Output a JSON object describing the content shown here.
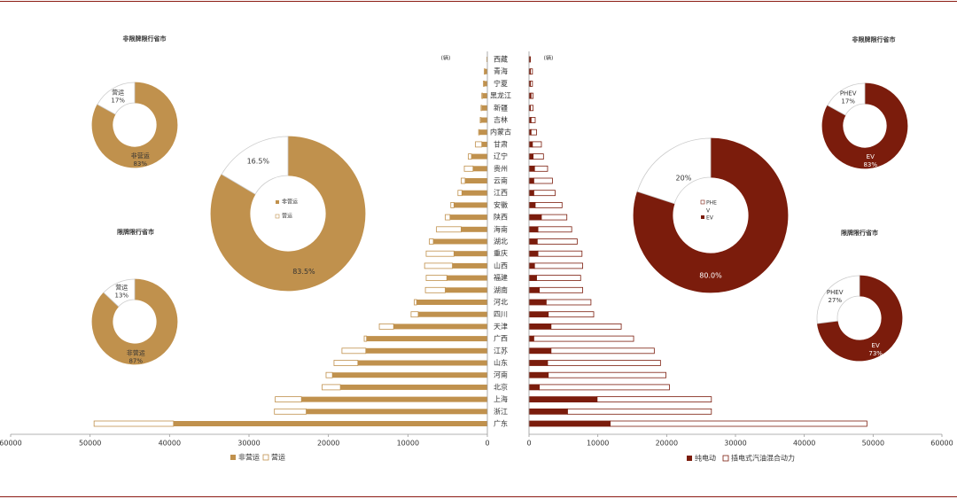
{
  "colors": {
    "commercial": "#c0914d",
    "ev": "#7b1c0c",
    "outline_left": "#c0914d",
    "outline_right": "#7b1c0c",
    "rule": "#8b1a12",
    "axis": "#9a9a9a",
    "text": "#333333"
  },
  "titles": {
    "left_top_donut": "非限牌限行省市",
    "left_bottom_donut": "限牌限行省市",
    "right_top_donut": "非限牌限行省市",
    "right_bottom_donut": "限牌限行省市"
  },
  "chart_data": [
    {
      "type": "bar",
      "orientation": "horizontal",
      "direction": "leftward",
      "stacked": true,
      "unit": "(辆)",
      "categories": [
        "广东",
        "浙江",
        "上海",
        "北京",
        "河南",
        "山东",
        "江苏",
        "广西",
        "天津",
        "四川",
        "河北",
        "湖南",
        "福建",
        "山西",
        "重庆",
        "湖北",
        "海南",
        "陕西",
        "安徽",
        "江西",
        "云南",
        "贵州",
        "辽宁",
        "甘肃",
        "内蒙古",
        "吉林",
        "新疆",
        "黑龙江",
        "宁夏",
        "青海",
        "西藏"
      ],
      "series": [
        {
          "name": "非营运",
          "values": [
            39500,
            22800,
            23400,
            18500,
            19500,
            16300,
            15300,
            15200,
            11800,
            8700,
            8900,
            5300,
            5100,
            4400,
            4200,
            6800,
            3300,
            4700,
            4200,
            3200,
            2800,
            1800,
            2000,
            700,
            1000,
            800,
            700,
            600,
            400,
            300,
            100
          ]
        },
        {
          "name": "营运",
          "values": [
            10000,
            4000,
            3300,
            2300,
            800,
            3000,
            3000,
            300,
            1800,
            900,
            300,
            2500,
            2600,
            3500,
            3500,
            500,
            3100,
            600,
            400,
            500,
            500,
            1100,
            400,
            800,
            100,
            100,
            100,
            100,
            100,
            100,
            0
          ]
        }
      ],
      "xlim": [
        0,
        60000
      ],
      "xticks": [
        60000,
        50000,
        40000,
        30000,
        20000,
        10000,
        0
      ],
      "legend": "bottom-left"
    },
    {
      "type": "bar",
      "orientation": "horizontal",
      "direction": "rightward",
      "stacked": true,
      "unit": "(辆)",
      "categories": [
        "广东",
        "浙江",
        "上海",
        "北京",
        "河南",
        "山东",
        "江苏",
        "广西",
        "天津",
        "四川",
        "河北",
        "湖南",
        "福建",
        "山西",
        "重庆",
        "湖北",
        "海南",
        "陕西",
        "安徽",
        "江西",
        "云南",
        "贵州",
        "辽宁",
        "甘肃",
        "内蒙古",
        "吉林",
        "新疆",
        "黑龙江",
        "宁夏",
        "青海",
        "西藏"
      ],
      "series": [
        {
          "name": "纯电动",
          "values": [
            11800,
            5600,
            9900,
            1500,
            2800,
            2700,
            3200,
            700,
            3200,
            2800,
            2500,
            1500,
            1100,
            800,
            1300,
            1200,
            1300,
            1800,
            900,
            700,
            700,
            800,
            600,
            500,
            300,
            300,
            200,
            300,
            200,
            200,
            100
          ]
        },
        {
          "name": "插电式汽油混合动力",
          "values": [
            37300,
            20900,
            16600,
            18900,
            17100,
            16400,
            15000,
            14500,
            10200,
            6600,
            6500,
            6300,
            6400,
            7000,
            6400,
            5800,
            4900,
            3700,
            3900,
            3100,
            2700,
            1900,
            1500,
            1300,
            800,
            600,
            400,
            300,
            300,
            300,
            100
          ]
        }
      ],
      "xlim": [
        0,
        60000
      ],
      "xticks": [
        0,
        10000,
        20000,
        30000,
        40000,
        50000,
        60000
      ],
      "legend": "bottom-left"
    },
    {
      "type": "pie",
      "donut": true,
      "slices": [
        {
          "label": "非营运",
          "value": 83.5,
          "value_label": "83.5%"
        },
        {
          "label": "营运",
          "value": 16.5,
          "value_label": "16.5%"
        }
      ],
      "legend": "center"
    },
    {
      "type": "pie",
      "donut": true,
      "slices": [
        {
          "label": "EV",
          "value": 80.0,
          "value_label": "80.0%"
        },
        {
          "label": "PHEV",
          "value": 20,
          "value_label": "20%"
        }
      ],
      "legend_labels": [
        "PHE",
        "V",
        "EV"
      ],
      "legend": "center"
    },
    {
      "type": "pie",
      "donut": true,
      "title": "非限牌限行省市",
      "slices": [
        {
          "label": "非营运",
          "value": 83,
          "value_label": "83%"
        },
        {
          "label": "营运",
          "value": 17,
          "value_label": "17%"
        }
      ]
    },
    {
      "type": "pie",
      "donut": true,
      "title": "限牌限行省市",
      "slices": [
        {
          "label": "非营运",
          "value": 87,
          "value_label": "87%"
        },
        {
          "label": "营运",
          "value": 13,
          "value_label": "13%"
        }
      ]
    },
    {
      "type": "pie",
      "donut": true,
      "title": "非限牌限行省市",
      "slices": [
        {
          "label": "EV",
          "value": 83,
          "value_label": "83%"
        },
        {
          "label": "PHEV",
          "value": 17,
          "value_label": "17%"
        }
      ]
    },
    {
      "type": "pie",
      "donut": true,
      "title": "限牌限行省市",
      "slices": [
        {
          "label": "EV",
          "value": 73,
          "value_label": "73%"
        },
        {
          "label": "PHEV",
          "value": 27,
          "value_label": "27%"
        }
      ]
    }
  ]
}
